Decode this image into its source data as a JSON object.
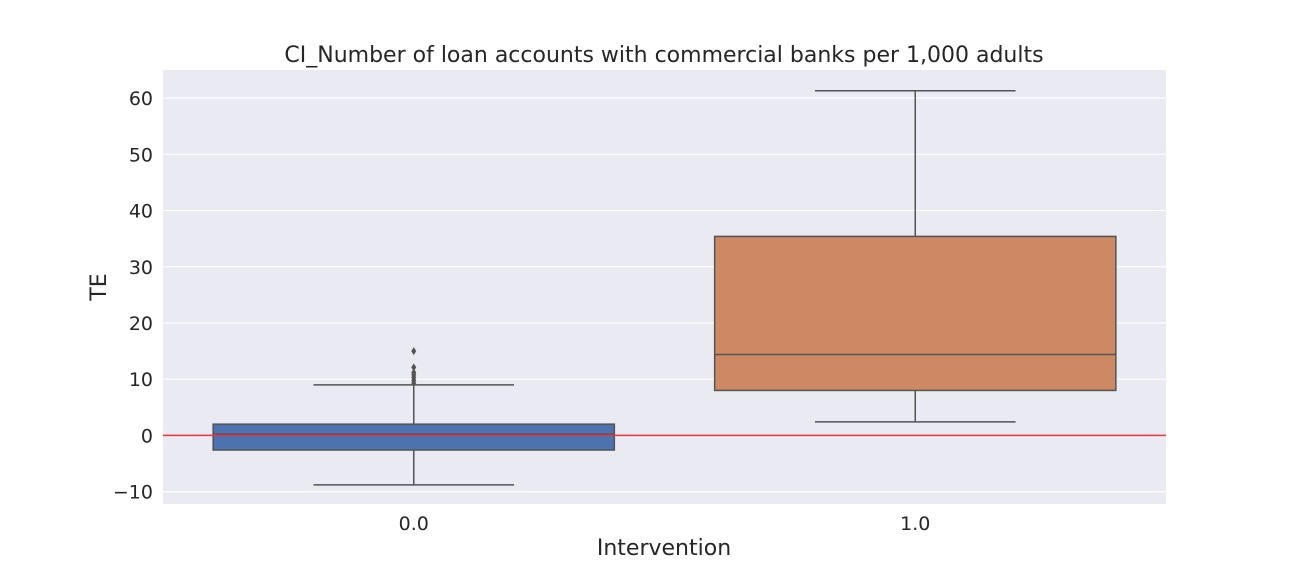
{
  "chart_data": {
    "type": "box",
    "title": "CI_Number of loan accounts with commercial banks per 1,000 adults",
    "xlabel": "Intervention",
    "ylabel": "TE",
    "ylim": [
      -12.2,
      65.0
    ],
    "yticks": [
      -10,
      0,
      10,
      20,
      30,
      40,
      50,
      60
    ],
    "ytick_labels": [
      "−10",
      "0",
      "10",
      "20",
      "30",
      "40",
      "50",
      "60"
    ],
    "categories": [
      "0.0",
      "1.0"
    ],
    "grid": true,
    "reference_line": {
      "y": 0,
      "color": "#e8363e"
    },
    "boxes": [
      {
        "category": "0.0",
        "whisker_low": -8.8,
        "q1": -2.6,
        "median": 0.2,
        "q3": 2.0,
        "whisker_high": 9.0,
        "outliers": [
          9.3,
          9.8,
          10.3,
          10.8,
          11.2,
          12.1,
          15.0
        ],
        "color": "#4c72b0"
      },
      {
        "category": "1.0",
        "whisker_low": 2.4,
        "q1": 8.0,
        "median": 14.4,
        "q3": 35.4,
        "whisker_high": 61.3,
        "outliers": [],
        "color": "#cd8963"
      }
    ],
    "colors": {
      "plot_background": "#eaeaf2",
      "grid": "#ffffff",
      "box_edge": "#545454"
    }
  }
}
